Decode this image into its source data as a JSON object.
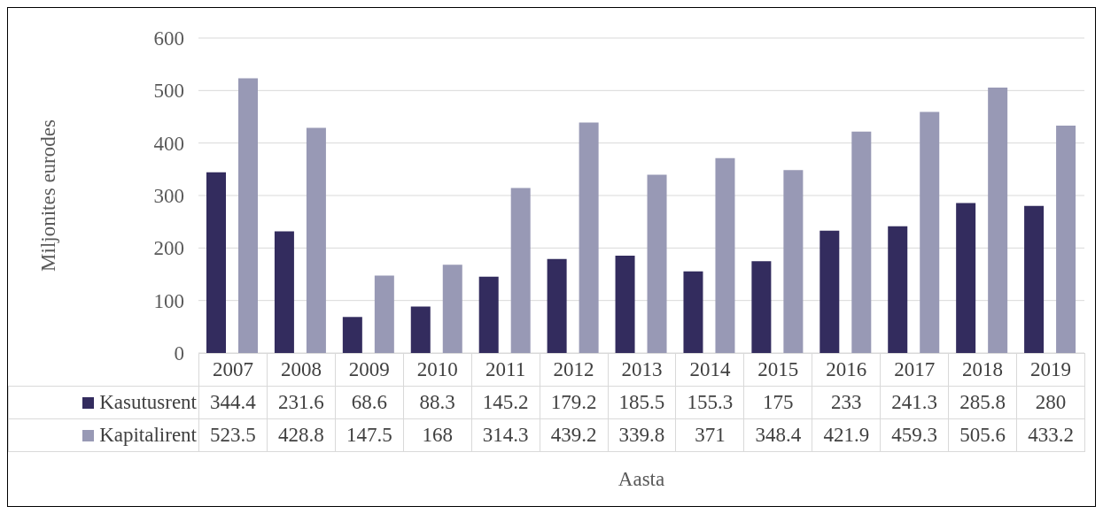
{
  "chart_data": {
    "type": "bar",
    "xlabel": "Aasta",
    "ylabel": "Miljonites eurodes",
    "categories": [
      "2007",
      "2008",
      "2009",
      "2010",
      "2011",
      "2012",
      "2013",
      "2014",
      "2015",
      "2016",
      "2017",
      "2018",
      "2019"
    ],
    "series": [
      {
        "name": "Kasutusrent",
        "color": "#332c5e",
        "values": [
          344.4,
          231.6,
          68.6,
          88.3,
          145.2,
          179.2,
          185.5,
          155.3,
          175,
          233,
          241.3,
          285.8,
          280
        ]
      },
      {
        "name": "Kapitalirent",
        "color": "#9899b5",
        "values": [
          523.5,
          428.8,
          147.5,
          168,
          314.3,
          439.2,
          339.8,
          371,
          348.4,
          421.9,
          459.3,
          505.6,
          433.2
        ]
      }
    ],
    "ylim": [
      0,
      600
    ],
    "yticks": [
      0,
      100,
      200,
      300,
      400,
      500,
      600
    ],
    "grid": "y",
    "legend": "bottom",
    "data_labels": true
  }
}
